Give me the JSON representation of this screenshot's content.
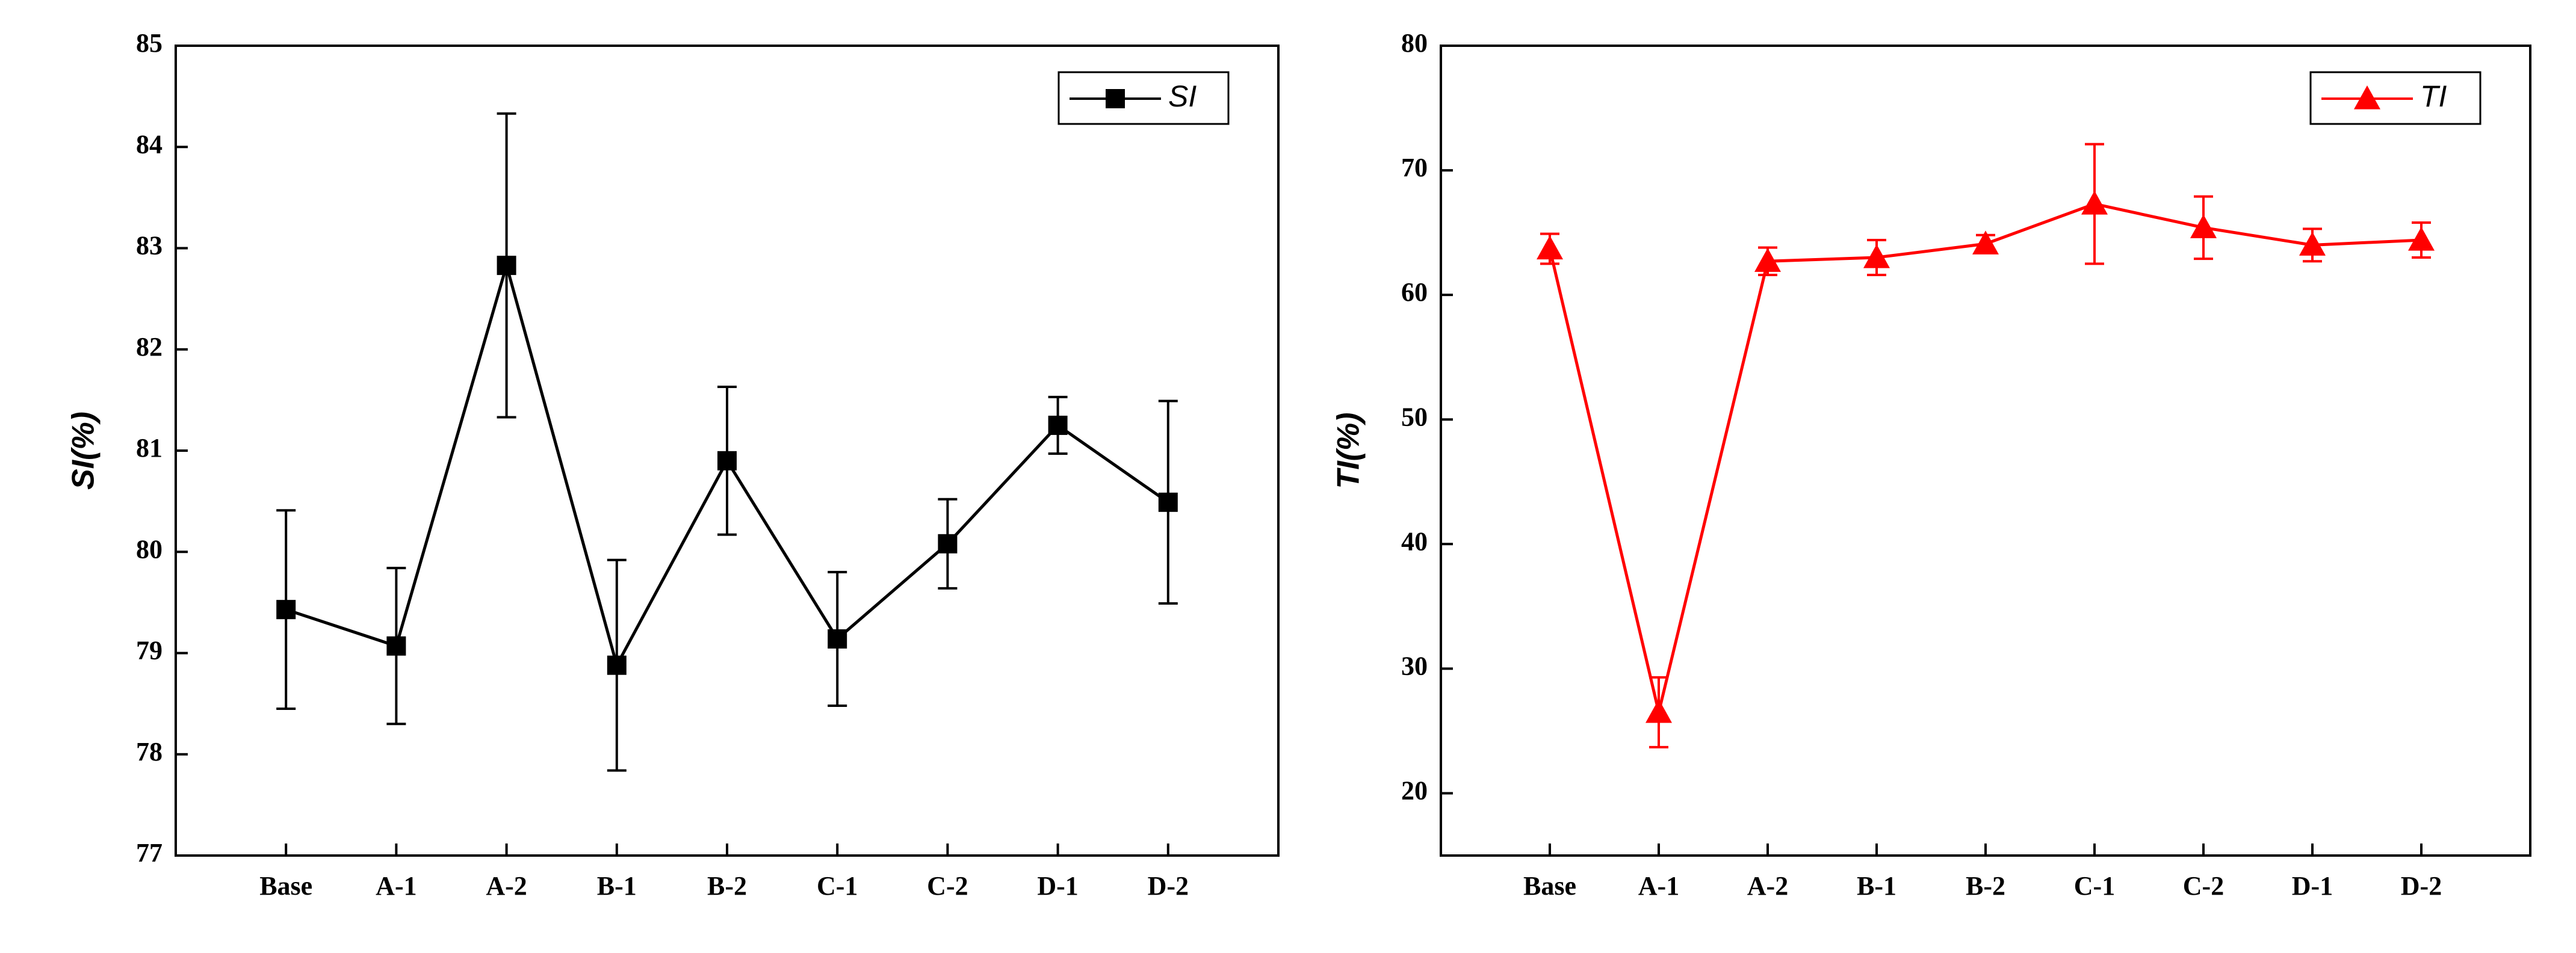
{
  "chart_data": [
    {
      "type": "line",
      "ylabel": "SI(%)",
      "categories": [
        "Base",
        "A-1",
        "A-2",
        "B-1",
        "B-2",
        "C-1",
        "C-2",
        "D-1",
        "D-2"
      ],
      "series": [
        {
          "name": "SI",
          "color": "#000000",
          "marker": "square",
          "values": [
            79.43,
            79.07,
            82.83,
            78.88,
            80.9,
            79.14,
            80.08,
            81.25,
            80.49
          ],
          "errors": [
            0.98,
            0.77,
            1.5,
            1.04,
            0.73,
            0.66,
            0.44,
            0.28,
            1.0
          ]
        }
      ],
      "ylim": [
        77,
        85
      ],
      "yticks": [
        77,
        78,
        79,
        80,
        81,
        82,
        83,
        84,
        85
      ],
      "legend": "upper right"
    },
    {
      "type": "line",
      "ylabel": "TI(%)",
      "categories": [
        "Base",
        "A-1",
        "A-2",
        "B-1",
        "B-2",
        "C-1",
        "C-2",
        "D-1",
        "D-2"
      ],
      "series": [
        {
          "name": "TI",
          "color": "#ff0000",
          "marker": "triangle",
          "values": [
            63.7,
            26.5,
            62.7,
            63.0,
            64.1,
            67.3,
            65.4,
            64.0,
            64.4
          ],
          "errors": [
            1.2,
            2.8,
            1.1,
            1.4,
            0.7,
            4.8,
            2.5,
            1.3,
            1.4
          ]
        }
      ],
      "ylim": [
        15,
        80
      ],
      "yticks": [
        20,
        30,
        40,
        50,
        60,
        70,
        80
      ],
      "legend": "upper right"
    }
  ]
}
